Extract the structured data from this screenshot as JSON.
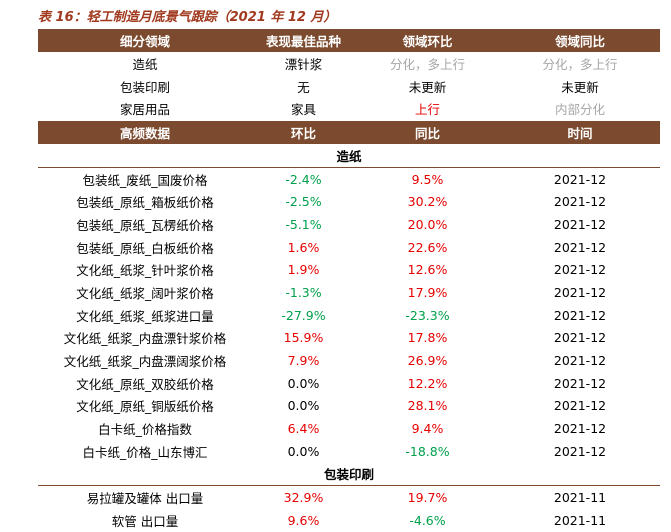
{
  "title": "表 16：轻工制造月底景气跟踪（2021 年 12 月）",
  "summary": {
    "header": [
      "细分领域",
      "表现最佳品种",
      "领域环比",
      "领域同比"
    ],
    "rows": [
      {
        "cells": [
          "造纸",
          "漂针浆",
          "分化，多上行",
          "分化，多上行"
        ],
        "colors": [
          "#000000",
          "#000000",
          "#a6a6a6",
          "#a6a6a6"
        ]
      },
      {
        "cells": [
          "包装印刷",
          "无",
          "未更新",
          "未更新"
        ],
        "colors": [
          "#000000",
          "#000000",
          "#000000",
          "#000000"
        ]
      },
      {
        "cells": [
          "家居用品",
          "家具",
          "上行",
          "内部分化"
        ],
        "colors": [
          "#000000",
          "#000000",
          "#e60000",
          "#a6a6a6"
        ]
      }
    ]
  },
  "detail": {
    "header": [
      "高频数据",
      "环比",
      "同比",
      "时间"
    ],
    "sections": [
      {
        "title": "造纸",
        "rows": [
          {
            "cells": [
              "包装纸_废纸_国废价格",
              "-2.4%",
              "9.5%",
              "2021-12"
            ],
            "colors": [
              "#000000",
              "#00a04c",
              "#e60000",
              "#000000"
            ]
          },
          {
            "cells": [
              "包装纸_原纸_箱板纸价格",
              "-2.5%",
              "30.2%",
              "2021-12"
            ],
            "colors": [
              "#000000",
              "#00a04c",
              "#e60000",
              "#000000"
            ]
          },
          {
            "cells": [
              "包装纸_原纸_瓦楞纸价格",
              "-5.1%",
              "20.0%",
              "2021-12"
            ],
            "colors": [
              "#000000",
              "#00a04c",
              "#e60000",
              "#000000"
            ]
          },
          {
            "cells": [
              "包装纸_原纸_白板纸价格",
              "1.6%",
              "22.6%",
              "2021-12"
            ],
            "colors": [
              "#000000",
              "#e60000",
              "#e60000",
              "#000000"
            ]
          },
          {
            "cells": [
              "文化纸_纸浆_针叶浆价格",
              "1.9%",
              "12.6%",
              "2021-12"
            ],
            "colors": [
              "#000000",
              "#e60000",
              "#e60000",
              "#000000"
            ]
          },
          {
            "cells": [
              "文化纸_纸浆_阔叶浆价格",
              "-1.3%",
              "17.9%",
              "2021-12"
            ],
            "colors": [
              "#000000",
              "#00a04c",
              "#e60000",
              "#000000"
            ]
          },
          {
            "cells": [
              "文化纸_纸浆_纸浆进口量",
              "-27.9%",
              "-23.3%",
              "2021-12"
            ],
            "colors": [
              "#000000",
              "#00a04c",
              "#00a04c",
              "#000000"
            ]
          },
          {
            "cells": [
              "文化纸_纸浆_内盘漂针浆价格",
              "15.9%",
              "17.8%",
              "2021-12"
            ],
            "colors": [
              "#000000",
              "#e60000",
              "#e60000",
              "#000000"
            ]
          },
          {
            "cells": [
              "文化纸_纸浆_内盘漂阔浆价格",
              "7.9%",
              "26.9%",
              "2021-12"
            ],
            "colors": [
              "#000000",
              "#e60000",
              "#e60000",
              "#000000"
            ]
          },
          {
            "cells": [
              "文化纸_原纸_双胶纸价格",
              "0.0%",
              "12.2%",
              "2021-12"
            ],
            "colors": [
              "#000000",
              "#000000",
              "#e60000",
              "#000000"
            ]
          },
          {
            "cells": [
              "文化纸_原纸_铜版纸价格",
              "0.0%",
              "28.1%",
              "2021-12"
            ],
            "colors": [
              "#000000",
              "#000000",
              "#e60000",
              "#000000"
            ]
          },
          {
            "cells": [
              "白卡纸_价格指数",
              "6.4%",
              "9.4%",
              "2021-12"
            ],
            "colors": [
              "#000000",
              "#e60000",
              "#e60000",
              "#000000"
            ]
          },
          {
            "cells": [
              "白卡纸_价格_山东博汇",
              "0.0%",
              "-18.8%",
              "2021-12"
            ],
            "colors": [
              "#000000",
              "#000000",
              "#00a04c",
              "#000000"
            ]
          }
        ]
      },
      {
        "title": "包装印刷",
        "rows": [
          {
            "cells": [
              "易拉罐及罐体 出口量",
              "32.9%",
              "19.7%",
              "2021-11"
            ],
            "colors": [
              "#000000",
              "#e60000",
              "#e60000",
              "#000000"
            ]
          },
          {
            "cells": [
              "软管 出口量",
              "9.6%",
              "-4.6%",
              "2021-11"
            ],
            "colors": [
              "#000000",
              "#e60000",
              "#00a04c",
              "#000000"
            ]
          }
        ]
      }
    ]
  }
}
